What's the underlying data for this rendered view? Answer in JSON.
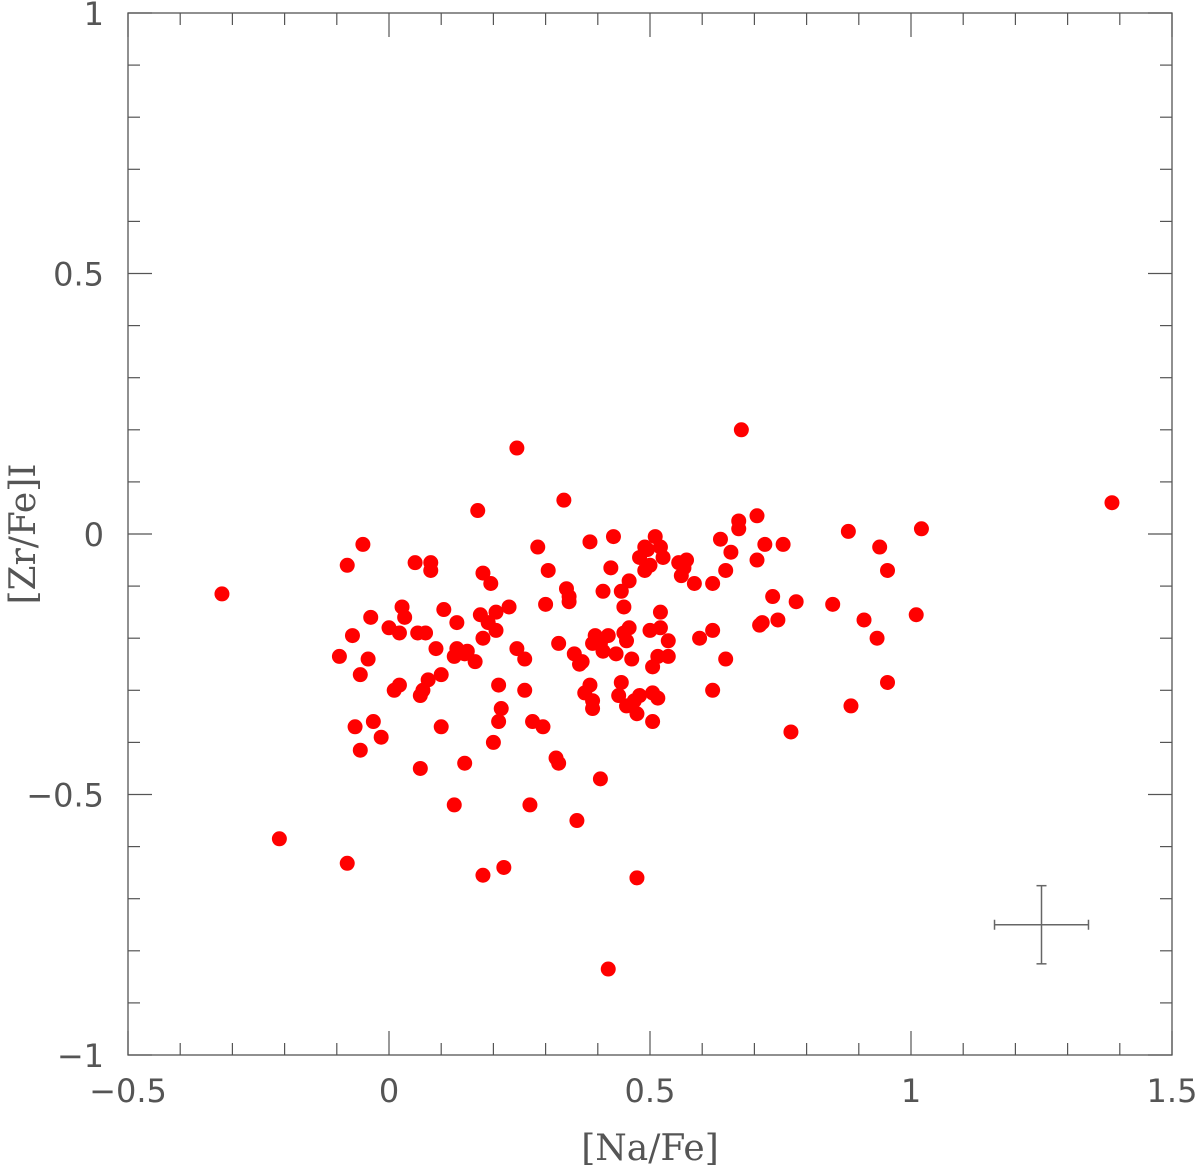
{
  "chart_data": {
    "type": "scatter",
    "title": "",
    "xlabel": "[Na/Fe]",
    "ylabel": "[Zr/Fe]I",
    "xlim": [
      -0.5,
      1.5
    ],
    "ylim": [
      -1,
      1
    ],
    "x_ticks": [
      -0.5,
      0,
      0.5,
      1,
      1.5
    ],
    "x_tick_labels": [
      "−0.5",
      "0",
      "0.5",
      "1",
      "1.5"
    ],
    "y_ticks": [
      -1,
      -0.5,
      0,
      0.5,
      1
    ],
    "y_tick_labels": [
      "−1",
      "−0.5",
      "0",
      "0.5",
      "1"
    ],
    "x_minor_step": 0.1,
    "y_minor_step": 0.1,
    "grid": false,
    "marker_color": "#ff0000",
    "error_bar": {
      "x": 1.25,
      "y": -0.75,
      "xerr": 0.09,
      "yerr": 0.075
    },
    "series": [
      {
        "points": [
          [
            -0.32,
            -0.115
          ],
          [
            -0.21,
            -0.585
          ],
          [
            -0.08,
            -0.632
          ],
          [
            -0.095,
            -0.235
          ],
          [
            -0.08,
            -0.06
          ],
          [
            -0.07,
            -0.195
          ],
          [
            -0.065,
            -0.37
          ],
          [
            -0.055,
            -0.415
          ],
          [
            -0.055,
            -0.27
          ],
          [
            -0.05,
            -0.02
          ],
          [
            -0.04,
            -0.24
          ],
          [
            -0.035,
            -0.16
          ],
          [
            -0.03,
            -0.36
          ],
          [
            -0.015,
            -0.39
          ],
          [
            0.0,
            -0.18
          ],
          [
            0.01,
            -0.3
          ],
          [
            0.02,
            -0.29
          ],
          [
            0.02,
            -0.19
          ],
          [
            0.025,
            -0.14
          ],
          [
            0.03,
            -0.16
          ],
          [
            0.05,
            -0.055
          ],
          [
            0.055,
            -0.19
          ],
          [
            0.06,
            -0.31
          ],
          [
            0.06,
            -0.45
          ],
          [
            0.065,
            -0.3
          ],
          [
            0.07,
            -0.19
          ],
          [
            0.075,
            -0.28
          ],
          [
            0.08,
            -0.055
          ],
          [
            0.08,
            -0.07
          ],
          [
            0.09,
            -0.22
          ],
          [
            0.1,
            -0.37
          ],
          [
            0.1,
            -0.27
          ],
          [
            0.105,
            -0.145
          ],
          [
            0.125,
            -0.52
          ],
          [
            0.125,
            -0.235
          ],
          [
            0.13,
            -0.22
          ],
          [
            0.13,
            -0.17
          ],
          [
            0.145,
            -0.44
          ],
          [
            0.145,
            -0.23
          ],
          [
            0.15,
            -0.225
          ],
          [
            0.165,
            -0.245
          ],
          [
            0.17,
            0.045
          ],
          [
            0.175,
            -0.155
          ],
          [
            0.18,
            -0.655
          ],
          [
            0.18,
            -0.075
          ],
          [
            0.18,
            -0.2
          ],
          [
            0.19,
            -0.17
          ],
          [
            0.195,
            -0.095
          ],
          [
            0.2,
            -0.4
          ],
          [
            0.205,
            -0.15
          ],
          [
            0.205,
            -0.185
          ],
          [
            0.21,
            -0.29
          ],
          [
            0.21,
            -0.36
          ],
          [
            0.215,
            -0.335
          ],
          [
            0.22,
            -0.64
          ],
          [
            0.23,
            -0.14
          ],
          [
            0.245,
            0.165
          ],
          [
            0.245,
            -0.22
          ],
          [
            0.26,
            -0.24
          ],
          [
            0.26,
            -0.3
          ],
          [
            0.27,
            -0.52
          ],
          [
            0.275,
            -0.36
          ],
          [
            0.285,
            -0.025
          ],
          [
            0.295,
            -0.37
          ],
          [
            0.3,
            -0.135
          ],
          [
            0.305,
            -0.07
          ],
          [
            0.32,
            -0.43
          ],
          [
            0.325,
            -0.21
          ],
          [
            0.325,
            -0.44
          ],
          [
            0.335,
            0.065
          ],
          [
            0.34,
            -0.105
          ],
          [
            0.345,
            -0.13
          ],
          [
            0.345,
            -0.12
          ],
          [
            0.355,
            -0.23
          ],
          [
            0.36,
            -0.55
          ],
          [
            0.365,
            -0.25
          ],
          [
            0.37,
            -0.245
          ],
          [
            0.375,
            -0.305
          ],
          [
            0.385,
            -0.015
          ],
          [
            0.385,
            -0.29
          ],
          [
            0.39,
            -0.32
          ],
          [
            0.39,
            -0.335
          ],
          [
            0.39,
            -0.21
          ],
          [
            0.395,
            -0.195
          ],
          [
            0.405,
            -0.47
          ],
          [
            0.405,
            -0.21
          ],
          [
            0.41,
            -0.225
          ],
          [
            0.41,
            -0.11
          ],
          [
            0.42,
            -0.195
          ],
          [
            0.42,
            -0.835
          ],
          [
            0.425,
            -0.065
          ],
          [
            0.43,
            -0.005
          ],
          [
            0.435,
            -0.23
          ],
          [
            0.44,
            -0.31
          ],
          [
            0.445,
            -0.285
          ],
          [
            0.445,
            -0.11
          ],
          [
            0.45,
            -0.14
          ],
          [
            0.45,
            -0.19
          ],
          [
            0.455,
            -0.205
          ],
          [
            0.455,
            -0.33
          ],
          [
            0.46,
            -0.09
          ],
          [
            0.46,
            -0.18
          ],
          [
            0.465,
            -0.24
          ],
          [
            0.47,
            -0.32
          ],
          [
            0.475,
            -0.345
          ],
          [
            0.475,
            -0.66
          ],
          [
            0.48,
            -0.31
          ],
          [
            0.48,
            -0.045
          ],
          [
            0.49,
            -0.025
          ],
          [
            0.49,
            -0.07
          ],
          [
            0.495,
            -0.03
          ],
          [
            0.5,
            -0.185
          ],
          [
            0.5,
            -0.06
          ],
          [
            0.505,
            -0.255
          ],
          [
            0.505,
            -0.36
          ],
          [
            0.505,
            -0.305
          ],
          [
            0.51,
            -0.005
          ],
          [
            0.515,
            -0.235
          ],
          [
            0.515,
            -0.315
          ],
          [
            0.52,
            -0.18
          ],
          [
            0.52,
            -0.15
          ],
          [
            0.52,
            -0.025
          ],
          [
            0.525,
            -0.045
          ],
          [
            0.535,
            -0.205
          ],
          [
            0.535,
            -0.235
          ],
          [
            0.555,
            -0.055
          ],
          [
            0.56,
            -0.08
          ],
          [
            0.565,
            -0.065
          ],
          [
            0.57,
            -0.05
          ],
          [
            0.585,
            -0.095
          ],
          [
            0.595,
            -0.2
          ],
          [
            0.62,
            -0.185
          ],
          [
            0.62,
            -0.095
          ],
          [
            0.62,
            -0.3
          ],
          [
            0.635,
            -0.01
          ],
          [
            0.645,
            -0.24
          ],
          [
            0.645,
            -0.07
          ],
          [
            0.655,
            -0.035
          ],
          [
            0.67,
            0.025
          ],
          [
            0.67,
            0.01
          ],
          [
            0.675,
            0.2
          ],
          [
            0.705,
            0.035
          ],
          [
            0.705,
            -0.05
          ],
          [
            0.71,
            -0.175
          ],
          [
            0.715,
            -0.17
          ],
          [
            0.72,
            -0.02
          ],
          [
            0.735,
            -0.12
          ],
          [
            0.745,
            -0.165
          ],
          [
            0.755,
            -0.02
          ],
          [
            0.77,
            -0.38
          ],
          [
            0.78,
            -0.13
          ],
          [
            0.85,
            -0.135
          ],
          [
            0.88,
            0.005
          ],
          [
            0.885,
            -0.33
          ],
          [
            0.91,
            -0.165
          ],
          [
            0.935,
            -0.2
          ],
          [
            0.94,
            -0.025
          ],
          [
            0.955,
            -0.285
          ],
          [
            0.955,
            -0.07
          ],
          [
            1.01,
            -0.155
          ],
          [
            1.02,
            0.01
          ],
          [
            1.385,
            0.06
          ]
        ]
      }
    ]
  }
}
